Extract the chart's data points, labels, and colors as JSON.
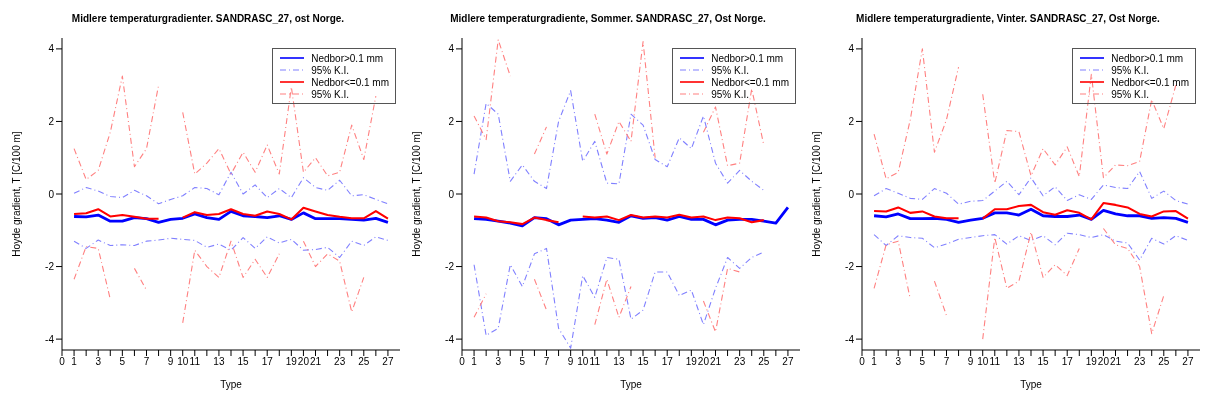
{
  "chart_data": [
    {
      "type": "line",
      "title": "Midlere temperaturgradienter. SANDRASC_27, ost Norge.",
      "xlabel": "Type",
      "ylabel": "Hoyde gradient, T [C/100 m]",
      "x": [
        1,
        2,
        3,
        4,
        5,
        6,
        7,
        8,
        9,
        10,
        11,
        12,
        13,
        14,
        15,
        16,
        17,
        18,
        19,
        20,
        21,
        22,
        23,
        24,
        25,
        26,
        27
      ],
      "xlim": [
        0,
        28
      ],
      "xticks": [
        0,
        1,
        {
          "value": 2,
          "label": null
        },
        3,
        {
          "value": 4,
          "label": null
        },
        5,
        {
          "value": 6,
          "label": null
        },
        7,
        {
          "value": 8,
          "label": null
        },
        9,
        10,
        11,
        {
          "value": 12,
          "label": null
        },
        13,
        {
          "value": 14,
          "label": null
        },
        15,
        {
          "value": 16,
          "label": null
        },
        17,
        {
          "value": 18,
          "label": null
        },
        19,
        20,
        21,
        {
          "value": 22,
          "label": null
        },
        23,
        {
          "value": 24,
          "label": null
        },
        25,
        {
          "value": 26,
          "label": null
        },
        27
      ],
      "ylim": [
        -4.3,
        4.3
      ],
      "yticks": [
        -4,
        -2,
        0,
        2,
        4
      ],
      "legend": "top right",
      "marker": "none",
      "series": [
        {
          "name": "Nedbor>0.1 mm",
          "color": "#0000ff",
          "line_style": "solid",
          "values": [
            -0.62,
            -0.63,
            -0.58,
            -0.75,
            -0.75,
            -0.65,
            -0.68,
            -0.78,
            -0.7,
            -0.67,
            -0.55,
            -0.65,
            -0.7,
            -0.48,
            -0.6,
            -0.62,
            -0.65,
            -0.6,
            -0.7,
            -0.52,
            -0.68,
            -0.68,
            -0.68,
            -0.7,
            -0.72,
            -0.67,
            -0.78
          ]
        },
        {
          "name": "95% K.I.",
          "color": "#8080ff",
          "line_style": "dashed",
          "values": [
            0.02,
            0.18,
            0.08,
            -0.07,
            -0.1,
            0.1,
            -0.05,
            -0.27,
            -0.15,
            -0.05,
            0.18,
            0.15,
            -0.02,
            0.6,
            0.0,
            0.25,
            -0.1,
            0.15,
            -0.1,
            0.45,
            0.18,
            0.1,
            0.38,
            -0.05,
            -0.02,
            -0.15,
            -0.27
          ]
        },
        {
          "color": "#8080ff",
          "line_style": "dashed",
          "values": [
            -1.3,
            -1.5,
            -1.27,
            -1.42,
            -1.4,
            -1.42,
            -1.3,
            -1.27,
            -1.22,
            -1.25,
            -1.28,
            -1.47,
            -1.38,
            -1.55,
            -1.2,
            -1.5,
            -1.18,
            -1.35,
            -1.25,
            -1.55,
            -1.53,
            -1.47,
            -1.75,
            -1.3,
            -1.42,
            -1.18,
            -1.28
          ]
        },
        {
          "name": "Nedbor<=0.1 mm",
          "color": "#ff0000",
          "line_style": "solid",
          "values": [
            -0.55,
            -0.53,
            -0.42,
            -0.62,
            -0.58,
            -0.63,
            -0.68,
            -0.68,
            null,
            -0.65,
            -0.5,
            -0.58,
            -0.55,
            -0.42,
            -0.55,
            -0.6,
            -0.48,
            -0.55,
            -0.7,
            -0.38,
            -0.48,
            -0.58,
            -0.63,
            -0.67,
            -0.67,
            -0.47,
            -0.68
          ]
        },
        {
          "name": "95% K.I.",
          "color": "#ff8080",
          "line_style": "dashed",
          "values": [
            1.25,
            0.4,
            0.65,
            1.7,
            3.25,
            0.75,
            1.25,
            3.0,
            null,
            2.25,
            0.55,
            0.85,
            1.25,
            0.55,
            1.15,
            0.6,
            1.35,
            0.55,
            2.95,
            0.6,
            1.0,
            0.5,
            0.6,
            1.9,
            0.95,
            2.7,
            null
          ]
        },
        {
          "color": "#ff8080",
          "line_style": "dashed",
          "values": [
            -2.35,
            -1.45,
            -1.5,
            -2.9,
            null,
            -2.05,
            -2.65,
            null,
            null,
            -3.55,
            -1.55,
            -2.0,
            -2.3,
            -1.3,
            -2.3,
            -1.8,
            -2.3,
            -1.65,
            null,
            -1.3,
            -2.0,
            -1.65,
            -1.85,
            -3.25,
            -2.3,
            null,
            null
          ]
        }
      ]
    },
    {
      "type": "line",
      "title": "Midlere temperaturgradiente, Sommer. SANDRASC_27, Ost Norge.",
      "xlabel": "Type",
      "ylabel": "Hoyde gradient, T [C/100 m]",
      "x": [
        1,
        2,
        3,
        4,
        5,
        6,
        7,
        8,
        9,
        10,
        11,
        12,
        13,
        14,
        15,
        16,
        17,
        18,
        19,
        20,
        21,
        22,
        23,
        24,
        25,
        26,
        27
      ],
      "xlim": [
        0,
        28
      ],
      "xticks": [
        0,
        1,
        {
          "value": 2,
          "label": null
        },
        3,
        {
          "value": 4,
          "label": null
        },
        5,
        {
          "value": 6,
          "label": null
        },
        7,
        {
          "value": 8,
          "label": null
        },
        9,
        10,
        11,
        {
          "value": 12,
          "label": null
        },
        13,
        {
          "value": 14,
          "label": null
        },
        15,
        {
          "value": 16,
          "label": null
        },
        17,
        {
          "value": 18,
          "label": null
        },
        19,
        20,
        21,
        {
          "value": 22,
          "label": null
        },
        23,
        {
          "value": 24,
          "label": null
        },
        25,
        {
          "value": 26,
          "label": null
        },
        27
      ],
      "ylim": [
        -4.3,
        4.3
      ],
      "yticks": [
        -4,
        -2,
        0,
        2,
        4
      ],
      "legend": "top right",
      "marker": "none",
      "series": [
        {
          "name": "Nedbor>0.1 mm",
          "color": "#0000ff",
          "line_style": "solid",
          "values": [
            -0.68,
            -0.7,
            -0.75,
            -0.8,
            -0.88,
            -0.65,
            -0.68,
            -0.85,
            -0.72,
            -0.7,
            -0.68,
            -0.72,
            -0.78,
            -0.6,
            -0.67,
            -0.65,
            -0.72,
            -0.62,
            -0.7,
            -0.7,
            -0.85,
            -0.72,
            -0.7,
            -0.7,
            -0.75,
            -0.8,
            -0.37
          ]
        },
        {
          "name": "95% K.I.",
          "color": "#8080ff",
          "line_style": "dashed",
          "values": [
            0.55,
            2.5,
            2.2,
            0.35,
            0.8,
            0.35,
            0.15,
            2.0,
            2.85,
            0.9,
            1.45,
            0.3,
            0.28,
            2.2,
            1.9,
            0.95,
            0.75,
            1.55,
            1.25,
            2.15,
            0.85,
            0.3,
            0.65,
            0.35,
            0.1,
            null,
            null
          ]
        },
        {
          "color": "#8080ff",
          "line_style": "dashed",
          "values": [
            -1.95,
            -3.9,
            -3.7,
            -1.95,
            -2.55,
            -1.65,
            -1.5,
            -3.7,
            -4.25,
            -2.25,
            -2.85,
            -1.75,
            -1.8,
            -3.45,
            -3.2,
            -2.15,
            -2.15,
            -2.8,
            -2.65,
            -3.6,
            -2.6,
            -1.75,
            -2.05,
            -1.75,
            -1.6,
            null,
            null
          ]
        },
        {
          "name": "Nedbor<=0.1 mm",
          "color": "#ff0000",
          "line_style": "solid",
          "values": [
            -0.62,
            -0.65,
            -0.75,
            -0.78,
            -0.83,
            -0.65,
            -0.72,
            -0.78,
            null,
            -0.62,
            -0.65,
            -0.62,
            -0.72,
            -0.58,
            -0.65,
            -0.62,
            -0.65,
            -0.57,
            -0.65,
            -0.62,
            -0.72,
            -0.65,
            -0.67,
            -0.78,
            -0.72,
            null,
            null
          ]
        },
        {
          "name": "95% K.I.",
          "color": "#ff8080",
          "line_style": "dashed",
          "values": [
            2.15,
            1.5,
            4.25,
            3.25,
            null,
            1.1,
            1.85,
            null,
            null,
            null,
            2.2,
            1.1,
            2.0,
            1.45,
            4.2,
            1.0,
            null,
            null,
            null,
            1.7,
            2.4,
            0.78,
            0.85,
            2.9,
            1.35,
            null,
            null
          ]
        },
        {
          "color": "#ff8080",
          "line_style": "dashed",
          "values": [
            -3.4,
            -2.75,
            null,
            null,
            null,
            -2.35,
            -3.2,
            null,
            null,
            null,
            -3.6,
            -2.35,
            -3.4,
            -2.55,
            null,
            null,
            null,
            null,
            null,
            -2.95,
            -3.8,
            -2.05,
            -2.15,
            null,
            null,
            null,
            null
          ]
        }
      ]
    },
    {
      "type": "line",
      "title": "Midlere temperaturgradiente, Vinter. SANDRASC_27, Ost Norge.",
      "xlabel": "Type",
      "ylabel": "Hoyde gradient, T [C/100 m]",
      "x": [
        1,
        2,
        3,
        4,
        5,
        6,
        7,
        8,
        9,
        10,
        11,
        12,
        13,
        14,
        15,
        16,
        17,
        18,
        19,
        20,
        21,
        22,
        23,
        24,
        25,
        26,
        27
      ],
      "xlim": [
        0,
        28
      ],
      "xticks": [
        0,
        1,
        {
          "value": 2,
          "label": null
        },
        3,
        {
          "value": 4,
          "label": null
        },
        5,
        {
          "value": 6,
          "label": null
        },
        7,
        {
          "value": 8,
          "label": null
        },
        9,
        10,
        11,
        {
          "value": 12,
          "label": null
        },
        13,
        {
          "value": 14,
          "label": null
        },
        15,
        {
          "value": 16,
          "label": null
        },
        17,
        {
          "value": 18,
          "label": null
        },
        19,
        20,
        21,
        {
          "value": 22,
          "label": null
        },
        23,
        {
          "value": 24,
          "label": null
        },
        25,
        {
          "value": 26,
          "label": null
        },
        27
      ],
      "ylim": [
        -4.3,
        4.3
      ],
      "yticks": [
        -4,
        -2,
        0,
        2,
        4
      ],
      "legend": "top right",
      "marker": "none",
      "series": [
        {
          "name": "Nedbor>0.1 mm",
          "color": "#0000ff",
          "line_style": "solid",
          "values": [
            -0.6,
            -0.63,
            -0.55,
            -0.68,
            -0.68,
            -0.67,
            -0.7,
            -0.78,
            -0.72,
            -0.67,
            -0.52,
            -0.52,
            -0.58,
            -0.42,
            -0.6,
            -0.62,
            -0.62,
            -0.58,
            -0.7,
            -0.45,
            -0.55,
            -0.6,
            -0.6,
            -0.67,
            -0.65,
            -0.67,
            -0.78
          ]
        },
        {
          "name": "95% K.I.",
          "color": "#8080ff",
          "line_style": "dashed",
          "values": [
            -0.05,
            0.15,
            0.02,
            -0.12,
            -0.15,
            0.15,
            0.02,
            -0.28,
            -0.2,
            -0.18,
            0.08,
            0.35,
            -0.02,
            0.45,
            -0.05,
            0.2,
            -0.18,
            -0.02,
            -0.15,
            0.25,
            0.18,
            0.15,
            0.62,
            -0.12,
            0.08,
            -0.18,
            -0.28
          ]
        },
        {
          "color": "#8080ff",
          "line_style": "dashed",
          "values": [
            -1.12,
            -1.42,
            -1.15,
            -1.2,
            -1.22,
            -1.48,
            -1.38,
            -1.25,
            -1.2,
            -1.15,
            -1.12,
            -1.38,
            -1.15,
            -1.28,
            -1.15,
            -1.4,
            -1.08,
            -1.12,
            -1.2,
            -1.12,
            -1.3,
            -1.35,
            -1.82,
            -1.22,
            -1.38,
            -1.15,
            -1.28
          ]
        },
        {
          "name": "Nedbor<=0.1 mm",
          "color": "#ff0000",
          "line_style": "solid",
          "values": [
            -0.47,
            -0.48,
            -0.37,
            -0.52,
            -0.48,
            -0.62,
            -0.67,
            -0.67,
            null,
            -0.68,
            -0.42,
            -0.42,
            -0.33,
            -0.3,
            -0.5,
            -0.57,
            -0.45,
            -0.52,
            -0.7,
            -0.25,
            -0.3,
            -0.37,
            -0.55,
            -0.62,
            -0.48,
            -0.47,
            -0.68
          ]
        },
        {
          "name": "95% K.I.",
          "color": "#ff8080",
          "line_style": "dashed",
          "values": [
            1.65,
            0.42,
            0.6,
            2.05,
            4.0,
            1.15,
            2.05,
            3.5,
            null,
            2.75,
            0.3,
            1.75,
            1.72,
            0.5,
            1.25,
            0.8,
            1.3,
            0.48,
            3.3,
            0.45,
            0.8,
            0.78,
            0.9,
            2.6,
            1.8,
            3.0,
            null
          ]
        },
        {
          "color": "#ff8080",
          "line_style": "dashed",
          "values": [
            -2.6,
            -1.4,
            -1.3,
            -2.9,
            null,
            -2.4,
            -3.35,
            null,
            null,
            -4.0,
            -1.2,
            -2.6,
            -2.4,
            -1.05,
            -2.3,
            -1.95,
            -2.25,
            -1.5,
            null,
            -0.95,
            -1.4,
            -1.5,
            -2.0,
            -3.85,
            -2.8,
            null,
            null
          ]
        }
      ]
    }
  ]
}
